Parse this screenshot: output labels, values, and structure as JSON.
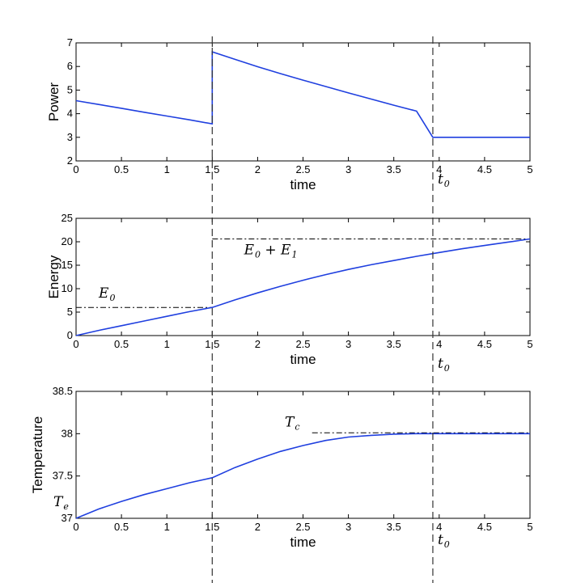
{
  "chart_data": [
    {
      "type": "line",
      "xlabel": "time",
      "ylabel": "Power",
      "xlim": [
        0,
        5
      ],
      "ylim": [
        2,
        7
      ],
      "xticks": [
        "0",
        "0.5",
        "1",
        "1.5",
        "2",
        "2.5",
        "3",
        "3.5",
        "4",
        "4.5",
        "5"
      ],
      "yticks": [
        "2",
        "3",
        "4",
        "5",
        "6",
        "7"
      ],
      "grid": false,
      "line_color": "#1f3fdf",
      "series": [
        {
          "x": [
            0,
            0.25,
            0.5,
            0.75,
            1.0,
            1.25,
            1.5,
            1.5,
            1.75,
            2.0,
            2.25,
            2.5,
            2.75,
            3.0,
            3.25,
            3.5,
            3.75,
            3.93,
            4.0,
            4.5,
            5.0
          ],
          "y": [
            4.55,
            4.39,
            4.23,
            4.06,
            3.9,
            3.74,
            3.57,
            6.62,
            6.3,
            5.99,
            5.7,
            5.42,
            5.15,
            4.88,
            4.62,
            4.36,
            4.11,
            3.0,
            3.0,
            3.0,
            3.0
          ]
        }
      ],
      "annotations": [
        {
          "type": "vline",
          "x": 1.5,
          "style": "dashed"
        },
        {
          "type": "vline",
          "x": 3.93,
          "style": "dashed"
        },
        {
          "type": "label",
          "text": "t",
          "sub": "0",
          "x": 3.93,
          "y": 1.95
        }
      ]
    },
    {
      "type": "line",
      "xlabel": "time",
      "ylabel": "Energy",
      "xlim": [
        0,
        5
      ],
      "ylim": [
        0,
        25
      ],
      "xticks": [
        "0",
        "0.5",
        "1",
        "1.5",
        "2",
        "2.5",
        "3",
        "3.5",
        "4",
        "4.5",
        "5"
      ],
      "yticks": [
        "0",
        "5",
        "10",
        "15",
        "20",
        "25"
      ],
      "grid": false,
      "line_color": "#1f3fdf",
      "series": [
        {
          "x": [
            0,
            0.25,
            0.5,
            0.75,
            1.0,
            1.25,
            1.5,
            1.75,
            2.0,
            2.25,
            2.5,
            2.75,
            3.0,
            3.25,
            3.5,
            3.75,
            4.0,
            4.25,
            4.5,
            4.75,
            5.0
          ],
          "y": [
            0,
            1.1,
            2.1,
            3.1,
            4.1,
            5.1,
            6.0,
            7.6,
            9.1,
            10.5,
            11.8,
            13.0,
            14.1,
            15.1,
            16.0,
            16.9,
            17.7,
            18.5,
            19.2,
            19.9,
            20.6
          ]
        }
      ],
      "annotations": [
        {
          "type": "hline",
          "y": 6.0,
          "x_from": 0,
          "x_to": 1.5,
          "style": "dashdot",
          "label": "E",
          "sub": "0"
        },
        {
          "type": "hline",
          "y": 20.6,
          "x_from": 1.5,
          "x_to": 5.0,
          "style": "dashdot",
          "label": "E",
          "sub": "0",
          "label2": " + E",
          "sub2": "1"
        },
        {
          "type": "vline",
          "x": 1.5,
          "style": "dashed"
        },
        {
          "type": "vline",
          "x": 3.93,
          "style": "dashed"
        },
        {
          "type": "label",
          "text": "t",
          "sub": "0",
          "x": 3.93,
          "y": -1.5
        }
      ]
    },
    {
      "type": "line",
      "xlabel": "time",
      "ylabel": "Temperature",
      "xlim": [
        0,
        5
      ],
      "ylim": [
        37,
        38.5
      ],
      "xticks": [
        "0",
        "0.5",
        "1",
        "1.5",
        "2",
        "2.5",
        "3",
        "3.5",
        "4",
        "4.5",
        "5"
      ],
      "yticks": [
        "37",
        "37.5",
        "38",
        "38.5"
      ],
      "grid": false,
      "line_color": "#1f3fdf",
      "series": [
        {
          "x": [
            0,
            0.25,
            0.5,
            0.75,
            1.0,
            1.25,
            1.5,
            1.75,
            2.0,
            2.25,
            2.5,
            2.75,
            3.0,
            3.25,
            3.5,
            3.75,
            4.0,
            4.25,
            4.5,
            4.75,
            5.0
          ],
          "y": [
            37.0,
            37.11,
            37.2,
            37.28,
            37.35,
            37.42,
            37.48,
            37.6,
            37.7,
            37.79,
            37.86,
            37.92,
            37.96,
            37.98,
            37.995,
            38.0,
            38.0,
            38.0,
            38.0,
            38.0,
            38.0
          ]
        }
      ],
      "annotations": [
        {
          "type": "hline",
          "y": 38.01,
          "x_from": 2.6,
          "x_to": 5.0,
          "style": "dashdot",
          "label": "T",
          "sub": "c"
        },
        {
          "type": "label",
          "text": "T",
          "sub": "e",
          "x": -0.15,
          "y": 37.05
        },
        {
          "type": "vline",
          "x": 1.5,
          "style": "dashed"
        },
        {
          "type": "vline",
          "x": 3.93,
          "style": "dashed"
        },
        {
          "type": "label",
          "text": "t",
          "sub": "0",
          "x": 3.93,
          "y": 36.92
        }
      ]
    }
  ]
}
